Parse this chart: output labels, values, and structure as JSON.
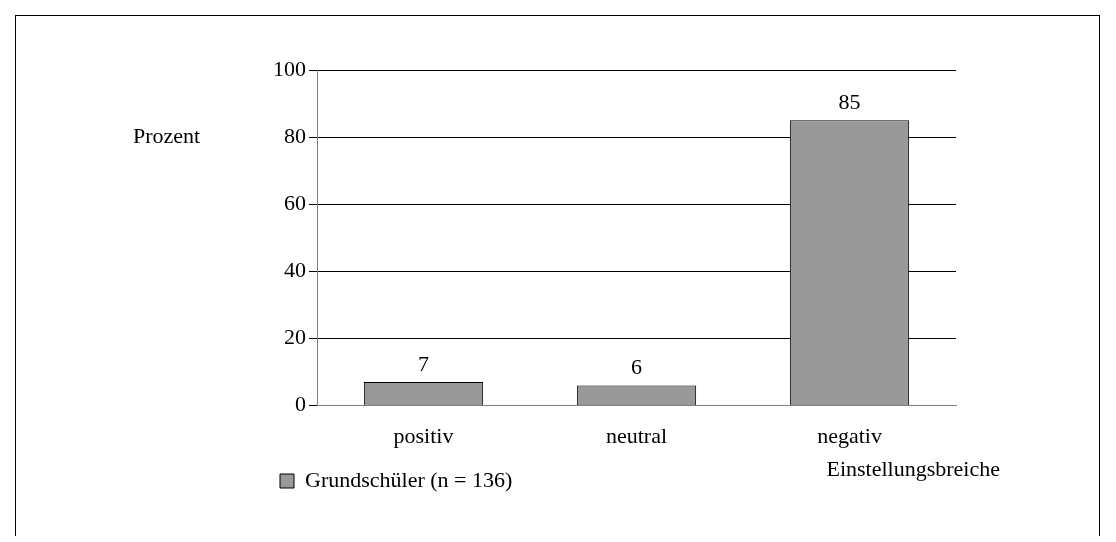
{
  "chart_data": {
    "type": "bar",
    "categories": [
      "positiv",
      "neutral",
      "negativ"
    ],
    "series": [
      {
        "name": "Grundschüler (n = 136)",
        "color": "#999999",
        "values": [
          7,
          6,
          85
        ]
      }
    ],
    "ylabel": "Prozent",
    "xlabel": "Einstellungsbreiche",
    "ylim": [
      0,
      100
    ],
    "yticks": [
      0,
      20,
      40,
      60,
      80,
      100
    ],
    "grid": "y",
    "legend": "bottom left",
    "data_labels": true
  }
}
